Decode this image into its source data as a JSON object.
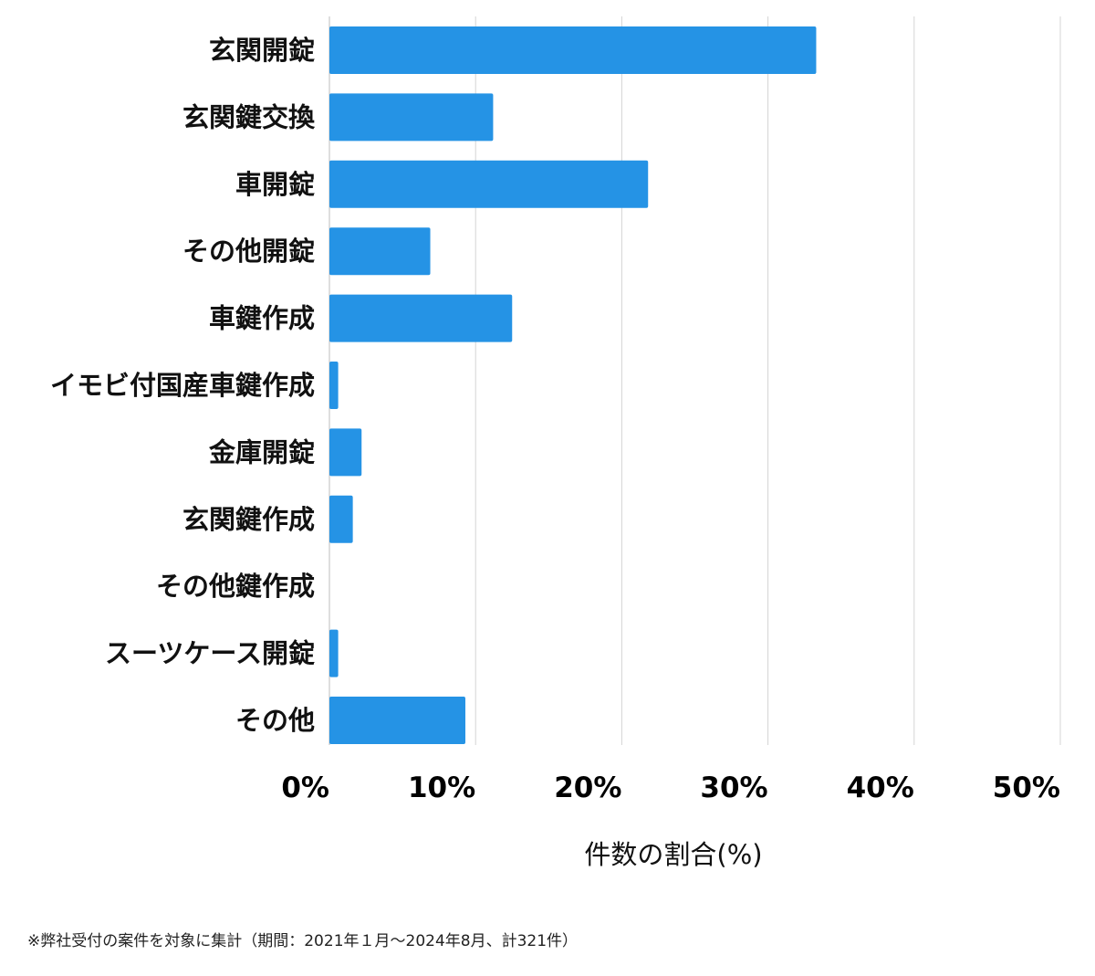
{
  "chart_data": {
    "type": "bar",
    "orientation": "horizontal",
    "categories": [
      "玄関開錠",
      "玄関鍵交換",
      "車開錠",
      "その他開錠",
      "車鍵作成",
      "イモビ付国産車鍵作成",
      "金庫開錠",
      "玄関鍵作成",
      "その他鍵作成",
      "スーツケース開錠",
      "その他"
    ],
    "values": [
      33.3,
      11.2,
      21.8,
      6.9,
      12.5,
      0.6,
      2.2,
      1.6,
      0,
      0.6,
      9.3
    ],
    "xlabel": "件数の割合(%)",
    "ylabel": "",
    "xlim": [
      0,
      50
    ],
    "xticks": [
      "0%",
      "10%",
      "20%",
      "30%",
      "40%",
      "50%"
    ],
    "grid": "vertical",
    "bar_color": "#2593e5",
    "grid_color": "#d4d4d4"
  },
  "footnote": "※弊社受付の案件を対象に集計（期間：2021年１月〜2024年8月、計321件）"
}
